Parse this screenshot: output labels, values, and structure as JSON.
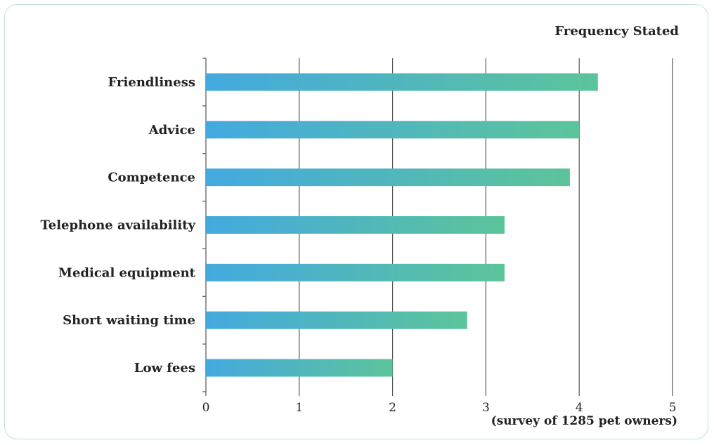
{
  "chart_data": {
    "type": "bar",
    "orientation": "horizontal",
    "title": "Frequency Stated",
    "note": "(survey of 1285 pet owners)",
    "categories": [
      "Friendliness",
      "Advice",
      "Competence",
      "Telephone availability",
      "Medical equipment",
      "Short waiting time",
      "Low fees"
    ],
    "values": [
      4.2,
      4.0,
      3.9,
      3.2,
      3.2,
      2.8,
      2.0
    ],
    "xlim": [
      0,
      5
    ],
    "xticks": [
      "0",
      "1",
      "2",
      "3",
      "4",
      "5"
    ],
    "grid": true,
    "bar_color_start": "#44a9df",
    "bar_color_end": "#5cc49a"
  }
}
